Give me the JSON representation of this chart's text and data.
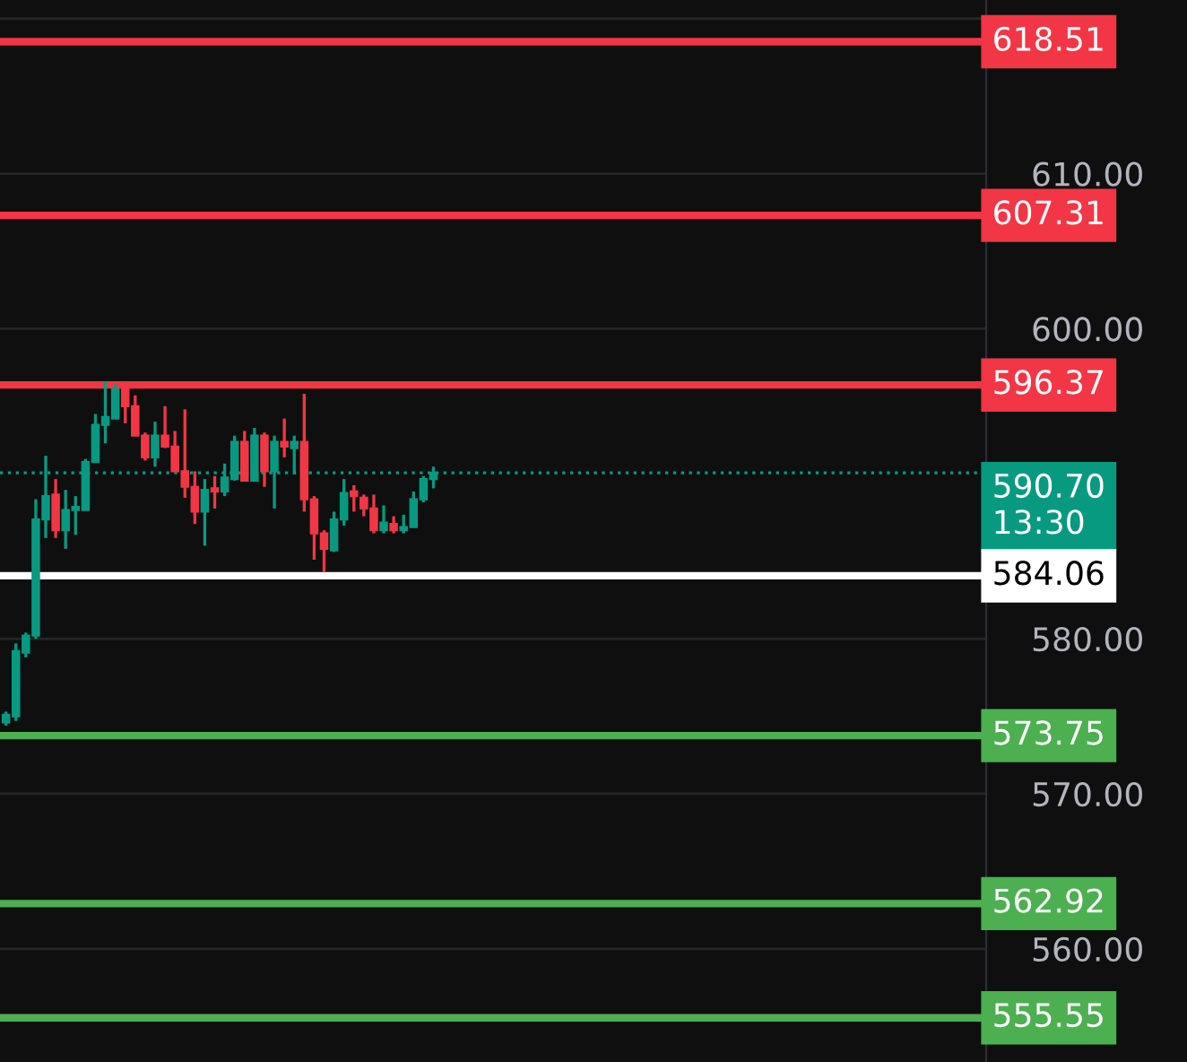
{
  "chart_data": {
    "type": "candlestick",
    "categories": [
      null,
      null,
      null,
      null,
      null,
      null,
      null,
      null,
      null,
      null,
      null,
      null,
      null,
      null,
      null,
      null,
      null,
      null,
      null,
      null,
      null,
      null,
      null,
      null,
      null,
      null,
      null,
      null,
      null,
      null,
      null,
      null,
      null,
      null,
      null,
      null,
      null,
      null,
      null,
      null,
      null,
      null,
      null,
      null,
      null,
      null,
      null,
      null,
      null,
      null,
      null,
      null,
      null,
      null,
      null,
      null,
      null,
      null,
      null,
      null,
      null,
      null,
      null,
      null,
      null,
      null,
      null,
      null,
      null,
      null,
      null,
      null,
      null,
      null,
      null,
      null,
      null,
      null,
      null,
      null,
      null,
      null,
      null,
      null,
      null,
      null,
      null,
      null,
      null,
      null,
      null,
      null,
      null,
      null,
      null,
      null,
      null,
      null,
      null
    ],
    "ohlc": [
      [
        574.6,
        575.3,
        574.4,
        575.1
      ],
      [
        575.0,
        579.7,
        574.7,
        579.2
      ],
      [
        579.1,
        580.4,
        578.8,
        580.2
      ],
      [
        580.2,
        589.0,
        580.0,
        587.7
      ],
      [
        587.7,
        591.8,
        586.5,
        589.2
      ],
      [
        589.3,
        590.3,
        586.5,
        587.0
      ],
      [
        587.0,
        589.6,
        585.8,
        588.3
      ],
      [
        588.3,
        589.2,
        586.7,
        588.5
      ],
      [
        588.3,
        591.6,
        588.3,
        591.4
      ],
      [
        591.4,
        594.5,
        591.4,
        593.8
      ],
      [
        593.8,
        596.6,
        592.6,
        594.3
      ],
      [
        594.2,
        596.4,
        594.2,
        596.1
      ],
      [
        596.1,
        596.5,
        593.9,
        595.0
      ],
      [
        595.0,
        595.7,
        593.1,
        593.1
      ],
      [
        593.1,
        593.3,
        591.5,
        591.7
      ],
      [
        591.7,
        594.0,
        591.1,
        593.1
      ],
      [
        593.1,
        595.0,
        592.3,
        592.4
      ],
      [
        592.4,
        593.4,
        590.8,
        590.8
      ],
      [
        590.8,
        594.8,
        589.1,
        589.8
      ],
      [
        589.8,
        590.8,
        587.4,
        588.2
      ],
      [
        588.2,
        590.3,
        586.0,
        589.6
      ],
      [
        589.7,
        590.5,
        588.4,
        589.5
      ],
      [
        589.5,
        591.3,
        589.2,
        590.4
      ],
      [
        590.3,
        593.1,
        590.2,
        592.7
      ],
      [
        592.7,
        593.4,
        590.2,
        590.2
      ],
      [
        590.2,
        593.6,
        590.2,
        593.1
      ],
      [
        593.1,
        593.3,
        589.8,
        590.8
      ],
      [
        590.8,
        593.1,
        588.4,
        592.7
      ],
      [
        592.7,
        594.2,
        591.7,
        592.4
      ],
      [
        592.3,
        593.1,
        590.6,
        592.7
      ],
      [
        592.7,
        595.8,
        588.2,
        589.0
      ],
      [
        589.0,
        589.2,
        585.1,
        586.8
      ],
      [
        586.8,
        587.0,
        584.3,
        585.8
      ],
      [
        585.7,
        588.2,
        585.6,
        587.7
      ],
      [
        587.7,
        590.3,
        587.3,
        589.4
      ],
      [
        589.5,
        589.9,
        588.2,
        589.2
      ],
      [
        589.1,
        589.3,
        587.9,
        588.4
      ],
      [
        588.4,
        589.3,
        586.8,
        587.0
      ],
      [
        587.0,
        588.6,
        586.8,
        587.5
      ],
      [
        587.4,
        587.9,
        586.8,
        587.0
      ],
      [
        587.0,
        588.0,
        586.8,
        587.2
      ],
      [
        587.2,
        589.5,
        587.2,
        589.0
      ],
      [
        589.0,
        590.5,
        588.8,
        590.3
      ],
      [
        590.3,
        591.1,
        589.7,
        590.7
      ],
      null,
      null,
      null,
      null,
      null,
      null,
      null,
      null,
      null,
      null,
      null,
      null,
      null,
      null,
      null,
      null,
      null,
      null,
      null,
      null,
      null,
      null,
      null,
      null,
      null,
      null,
      null,
      null,
      null,
      null,
      null,
      null,
      null,
      null,
      null,
      null,
      null,
      null,
      null,
      null,
      null,
      null,
      null,
      null,
      null,
      null,
      null,
      null,
      null,
      null,
      null,
      null,
      null,
      null,
      null
    ],
    "colors": [
      "#089981",
      "#089981",
      "#089981",
      "#089981",
      "#089981",
      "#f23645",
      "#089981",
      "#089981",
      "#089981",
      "#089981",
      "#089981",
      "#089981",
      "#f23645",
      "#f23645",
      "#f23645",
      "#089981",
      "#f23645",
      "#f23645",
      "#f23645",
      "#f23645",
      "#089981",
      "#f23645",
      "#089981",
      "#089981",
      "#f23645",
      "#089981",
      "#f23645",
      "#089981",
      "#f23645",
      "#089981",
      "#f23645",
      "#f23645",
      "#f23645",
      "#089981",
      "#089981",
      "#f23645",
      "#f23645",
      "#f23645",
      "#089981",
      "#f23645",
      "#089981",
      "#089981",
      "#089981",
      "#089981",
      null,
      null,
      null,
      null,
      null,
      null,
      null,
      null,
      null,
      null,
      null,
      null,
      null,
      null,
      null,
      null,
      null,
      null,
      null,
      null,
      null,
      null,
      null,
      null,
      null,
      null,
      null,
      null,
      null,
      null,
      null,
      null,
      null,
      null,
      null,
      null,
      null,
      null,
      null,
      null,
      null,
      null,
      null,
      null,
      null,
      null,
      null,
      null,
      null,
      null,
      null,
      null,
      null,
      null,
      null
    ],
    "ylim": [
      552.7,
      621.2
    ],
    "yticks": [
      {
        "value": 560,
        "label": "560.00"
      },
      {
        "value": 570,
        "label": "570.00"
      },
      {
        "value": 580,
        "label": "580.00"
      },
      {
        "value": 600,
        "label": "600.00"
      },
      {
        "value": 610,
        "label": "610.00"
      },
      {
        "value": 620,
        "label": null
      }
    ],
    "grid": "y",
    "ref_lines": [
      {
        "axis": "y",
        "value": 618.51,
        "label": "618.51",
        "color": "#f23645",
        "line_style": "solid"
      },
      {
        "axis": "y",
        "value": 607.31,
        "label": "607.31",
        "color": "#f23645",
        "line_style": "solid"
      },
      {
        "axis": "y",
        "value": 596.37,
        "label": "596.37",
        "color": "#f23645",
        "line_style": "solid"
      },
      {
        "axis": "y",
        "value": 590.7,
        "label": "590.70\n13:30",
        "color": "#089981",
        "line_style": "dotted"
      },
      {
        "axis": "y",
        "value": 584.06,
        "label": "584.06",
        "color": "#ffffff",
        "line_style": "solid"
      },
      {
        "axis": "y",
        "value": 573.75,
        "label": "573.75",
        "color": "#4caf50",
        "line_style": "solid"
      },
      {
        "axis": "y",
        "value": 562.92,
        "label": "562.92",
        "color": "#4caf50",
        "line_style": "solid"
      },
      {
        "axis": "y",
        "value": 555.55,
        "label": "555.55",
        "color": "#4caf50",
        "line_style": "solid"
      }
    ]
  }
}
